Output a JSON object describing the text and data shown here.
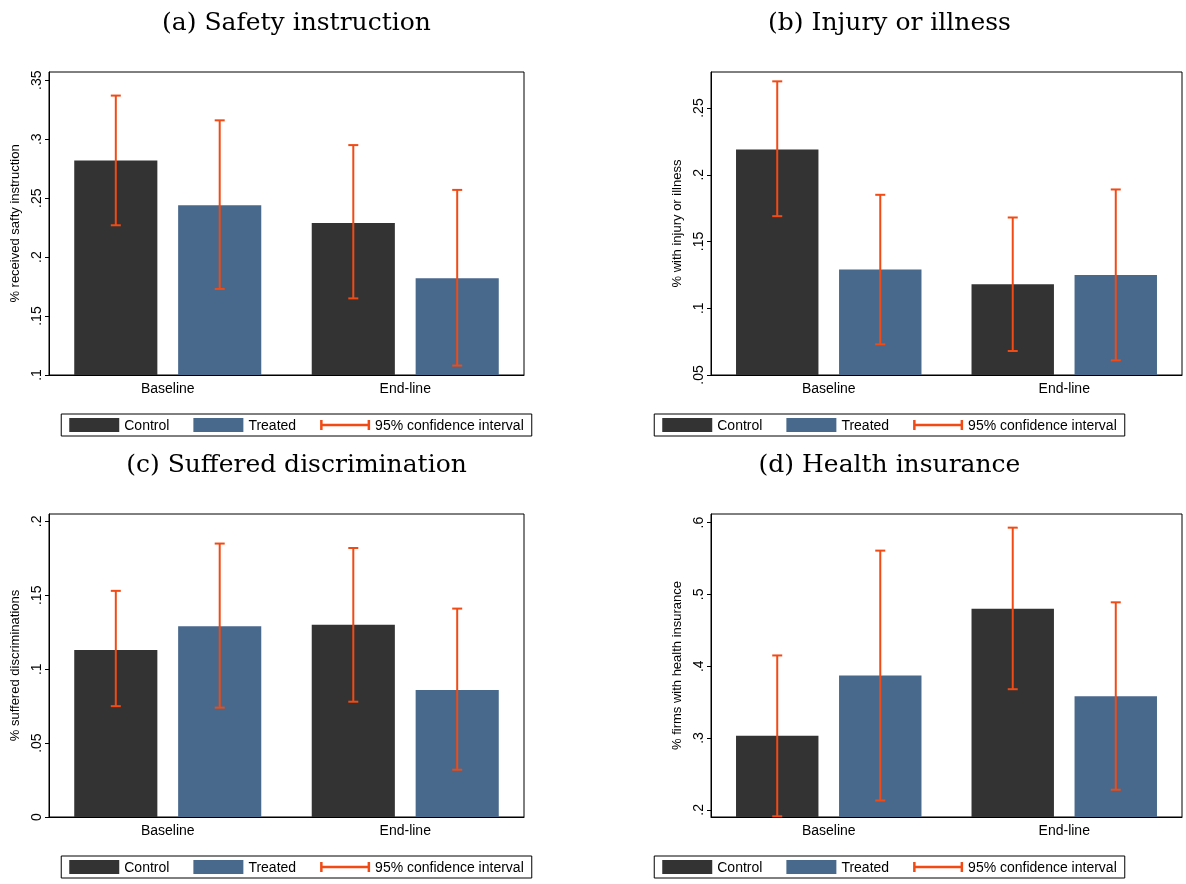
{
  "chart_data": [
    {
      "type": "bar",
      "title": "(a) Safety instruction",
      "ylabel": "% received safty instruction",
      "categories": [
        "Baseline",
        "End-line"
      ],
      "ylim": [
        0.1,
        0.357
      ],
      "yticks": [
        {
          "value": 0.1,
          "label": ".1"
        },
        {
          "value": 0.15,
          "label": ".15"
        },
        {
          "value": 0.2,
          "label": ".2"
        },
        {
          "value": 0.25,
          "label": ".25"
        },
        {
          "value": 0.3,
          "label": ".3"
        },
        {
          "value": 0.35,
          "label": ".35"
        }
      ],
      "grid": false,
      "legend": "bottom",
      "annotations": [
        "95% confidence interval"
      ],
      "series": [
        {
          "name": "Control",
          "color": "#333333",
          "values": [
            0.282,
            0.229
          ],
          "errors": [
            [
              0.227,
              0.337
            ],
            [
              0.165,
              0.295
            ]
          ]
        },
        {
          "name": "Treated",
          "color": "#48698c",
          "values": [
            0.244,
            0.182
          ],
          "errors": [
            [
              0.173,
              0.316
            ],
            [
              0.108,
              0.257
            ]
          ]
        }
      ]
    },
    {
      "type": "bar",
      "title": "(b) Injury or illness",
      "ylabel": "% with injury or illness",
      "categories": [
        "Baseline",
        "End-line"
      ],
      "ylim": [
        0.05,
        0.277
      ],
      "yticks": [
        {
          "value": 0.05,
          "label": ".05"
        },
        {
          "value": 0.1,
          "label": ".1"
        },
        {
          "value": 0.15,
          "label": ".15"
        },
        {
          "value": 0.2,
          "label": ".2"
        },
        {
          "value": 0.25,
          "label": ".25"
        }
      ],
      "grid": false,
      "legend": "bottom",
      "annotations": [
        "95% confidence interval"
      ],
      "series": [
        {
          "name": "Control",
          "color": "#333333",
          "values": [
            0.219,
            0.118
          ],
          "errors": [
            [
              0.169,
              0.27
            ],
            [
              0.068,
              0.168
            ]
          ]
        },
        {
          "name": "Treated",
          "color": "#48698c",
          "values": [
            0.129,
            0.125
          ],
          "errors": [
            [
              0.073,
              0.185
            ],
            [
              0.061,
              0.189
            ]
          ]
        }
      ]
    },
    {
      "type": "bar",
      "title": "(c) Suffered discrimination",
      "ylabel": "% suffered discriminations",
      "categories": [
        "Baseline",
        "End-line"
      ],
      "ylim": [
        0,
        0.205
      ],
      "yticks": [
        0,
        {
          "value": 0.05,
          "label": ".05"
        },
        {
          "value": 0.1,
          "label": ".1"
        },
        {
          "value": 0.15,
          "label": ".15"
        },
        {
          "value": 0.2,
          "label": ".2"
        }
      ],
      "grid": false,
      "legend": "bottom",
      "annotations": [
        "95% confidence interval"
      ],
      "series": [
        {
          "name": "Control",
          "color": "#333333",
          "values": [
            0.113,
            0.13
          ],
          "errors": [
            [
              0.075,
              0.153
            ],
            [
              0.078,
              0.182
            ]
          ]
        },
        {
          "name": "Treated",
          "color": "#48698c",
          "values": [
            0.129,
            0.086
          ],
          "errors": [
            [
              0.074,
              0.185
            ],
            [
              0.032,
              0.141
            ]
          ]
        }
      ]
    },
    {
      "type": "bar",
      "title": "(d) Health insurance",
      "ylabel": "% firms with health insurance",
      "categories": [
        "Baseline",
        "End-line"
      ],
      "ylim": [
        0.19,
        0.612
      ],
      "yticks": [
        {
          "value": 0.2,
          "label": ".2"
        },
        {
          "value": 0.3,
          "label": ".3"
        },
        {
          "value": 0.4,
          "label": ".4"
        },
        {
          "value": 0.5,
          "label": ".5"
        },
        {
          "value": 0.6,
          "label": ".6"
        }
      ],
      "grid": false,
      "legend": "bottom",
      "annotations": [
        "95% confidence interval"
      ],
      "series": [
        {
          "name": "Control",
          "color": "#333333",
          "values": [
            0.303,
            0.48
          ],
          "errors": [
            [
              0.191,
              0.415
            ],
            [
              0.368,
              0.593
            ]
          ]
        },
        {
          "name": "Treated",
          "color": "#48698c",
          "values": [
            0.387,
            0.358
          ],
          "errors": [
            [
              0.213,
              0.561
            ],
            [
              0.228,
              0.489
            ]
          ]
        }
      ]
    }
  ]
}
